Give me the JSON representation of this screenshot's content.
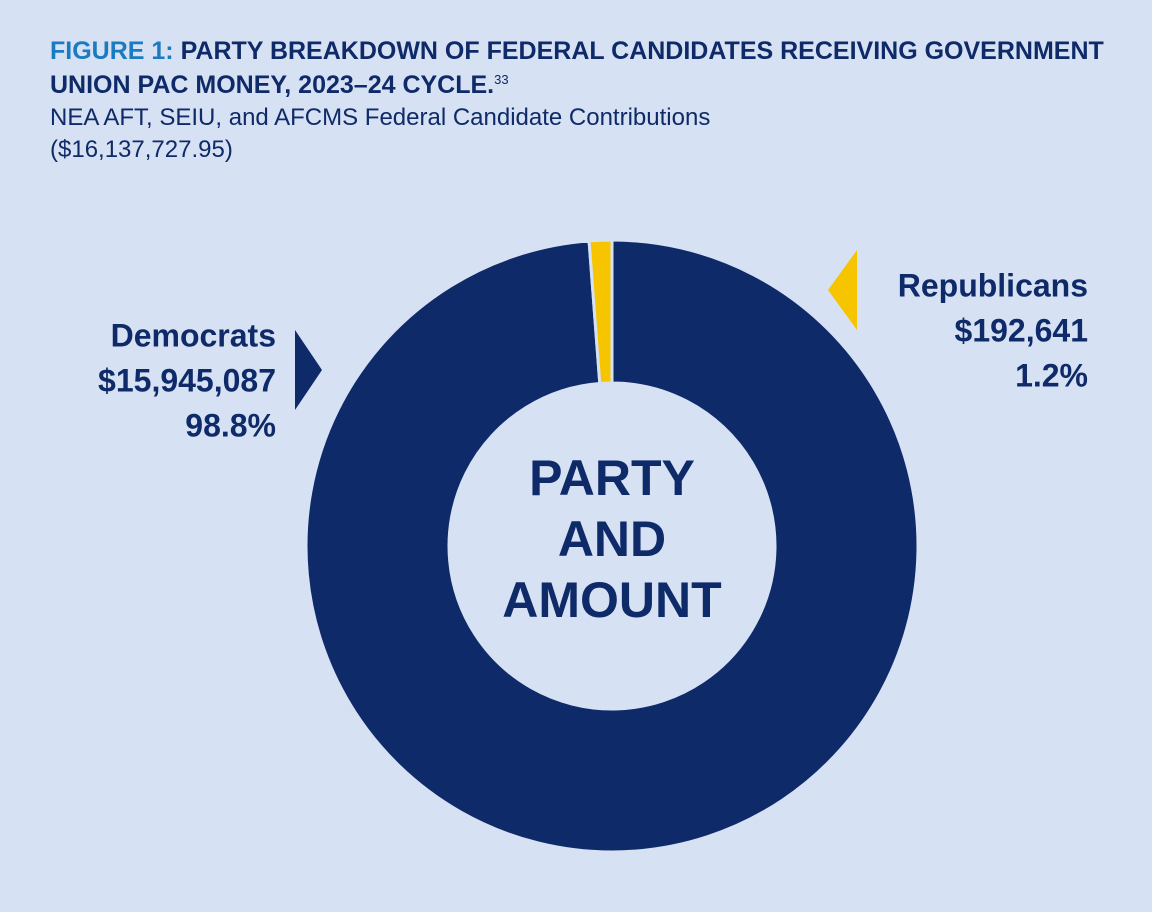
{
  "chart_data": {
    "type": "donut",
    "title_prefix": "FIGURE 1:",
    "title": "PARTY BREAKDOWN OF FEDERAL CANDIDATES RECEIVING GOVERNMENT UNION PAC MONEY, 2023–24 CYCLE.",
    "footnote": "33",
    "subtitle": "NEA AFT, SEIU, and AFCMS Federal Candidate Contributions",
    "total_label": "($16,137,727.95)",
    "center_label": [
      "PARTY",
      "AND",
      "AMOUNT"
    ],
    "categories": [
      "Democrats",
      "Republicans"
    ],
    "values": [
      15945087,
      192641
    ],
    "value_labels": [
      "$15,945,087",
      "$192,641"
    ],
    "percent_labels": [
      "98.8%",
      "1.2%"
    ],
    "colors": [
      "#0f2a68",
      "#f6c500"
    ]
  }
}
